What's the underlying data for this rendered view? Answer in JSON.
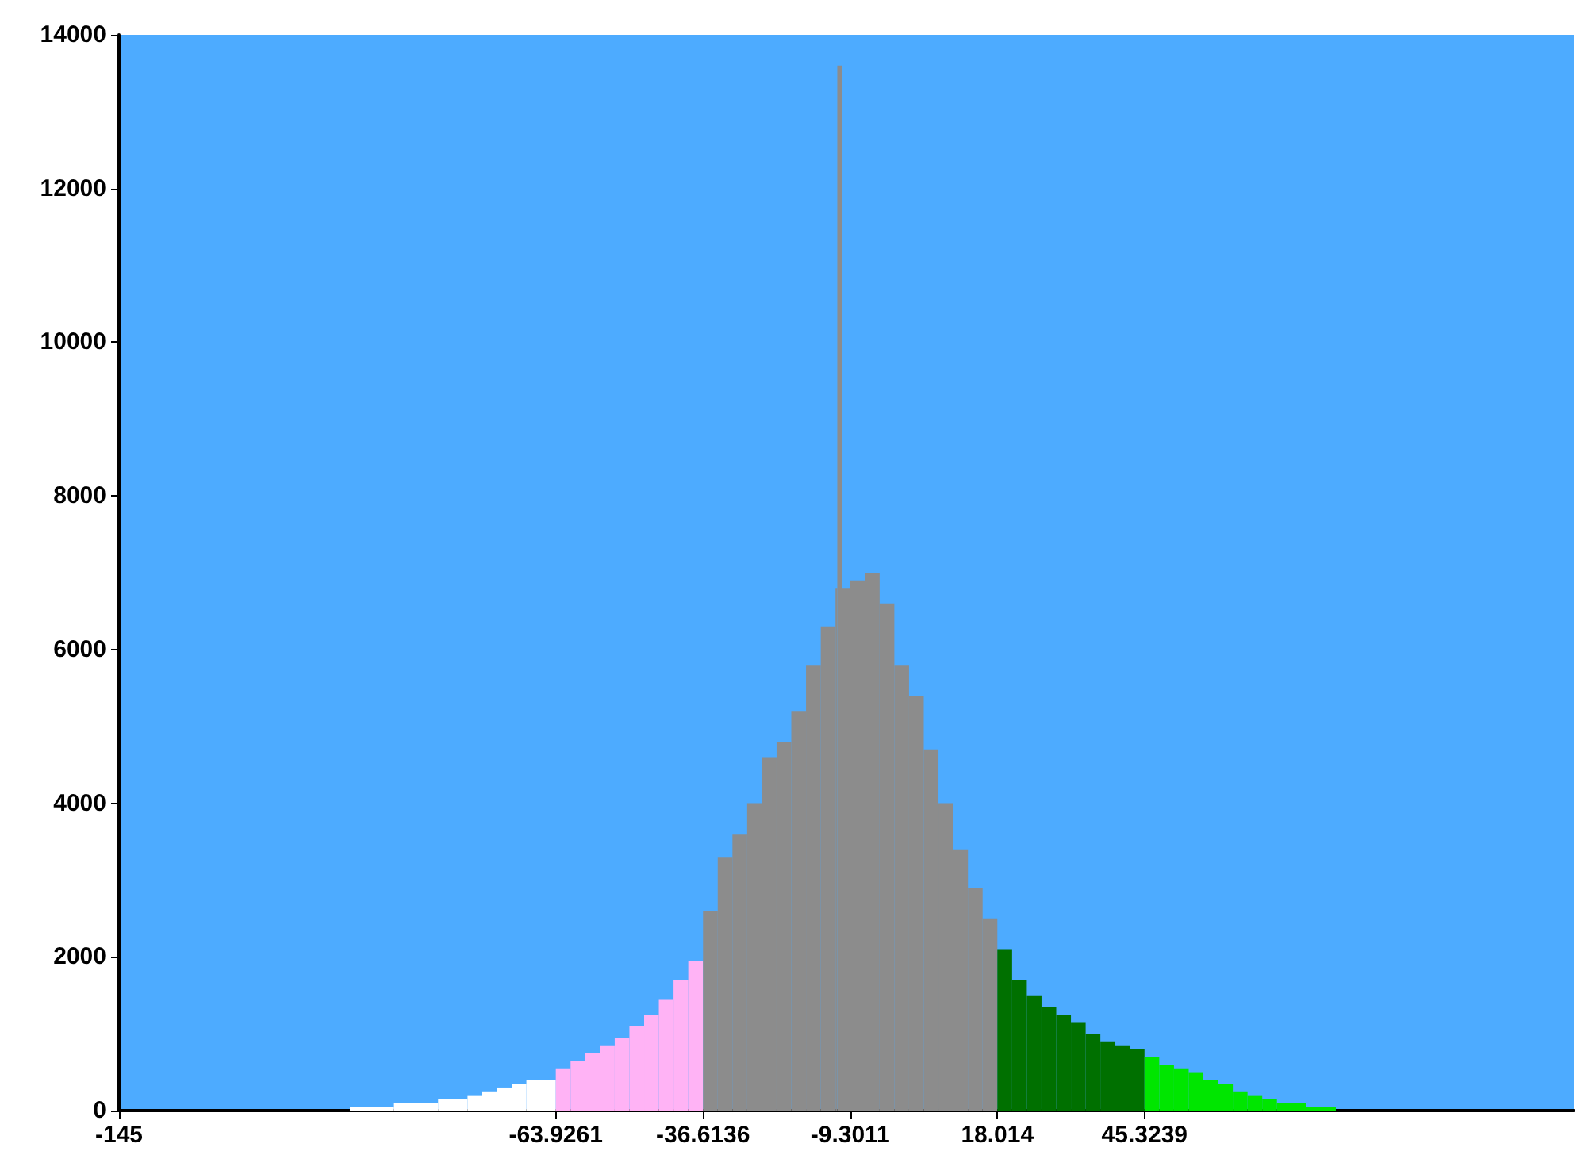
{
  "chart_data": {
    "type": "histogram",
    "bins": [
      -102.16,
      -93.97,
      -85.78,
      -80.31,
      -77.58,
      -74.85,
      -72.12,
      -69.39,
      -63.93,
      -61.19,
      -58.46,
      -55.73,
      -53,
      -50.27,
      -47.54,
      -44.81,
      -42.08,
      -39.35,
      -36.61,
      -33.88,
      -31.15,
      -28.42,
      -25.69,
      -22.96,
      -20.23,
      -17.5,
      -14.76,
      -12.03,
      -11.7,
      -10.8,
      -9.3,
      -6.57,
      -3.84,
      -1.11,
      1.62,
      4.35,
      7.08,
      9.82,
      12.55,
      15.28,
      18.01,
      20.75,
      23.48,
      26.21,
      28.94,
      31.67,
      34.4,
      37.13,
      39.86,
      42.59,
      45.32,
      48.06,
      50.79,
      53.52,
      56.25,
      58.98,
      61.71,
      64.44,
      67.17,
      69.9,
      75.37,
      80.83
    ],
    "values": [
      50,
      100,
      150,
      200,
      250,
      300,
      350,
      400,
      550,
      650,
      750,
      850,
      950,
      1100,
      1250,
      1450,
      1700,
      1950,
      2600,
      3300,
      3600,
      4000,
      4600,
      4800,
      5200,
      5800,
      6300,
      6800,
      13600,
      6800,
      6900,
      7000,
      6600,
      5800,
      5400,
      4700,
      4000,
      3400,
      2900,
      2500,
      2100,
      1700,
      1500,
      1350,
      1250,
      1150,
      1000,
      900,
      850,
      800,
      700,
      600,
      550,
      500,
      400,
      350,
      250,
      200,
      150,
      100,
      50
    ],
    "colors": [
      "#ffffff",
      "#ffffff",
      "#ffffff",
      "#ffffff",
      "#ffffff",
      "#ffffff",
      "#ffffff",
      "#ffffff",
      "#ffb3f5",
      "#ffb3f5",
      "#ffb3f5",
      "#ffb3f5",
      "#ffb3f5",
      "#ffb3f5",
      "#ffb3f5",
      "#ffb3f5",
      "#ffb3f5",
      "#ffb3f5",
      "#8c8c8c",
      "#8c8c8c",
      "#8c8c8c",
      "#8c8c8c",
      "#8c8c8c",
      "#8c8c8c",
      "#8c8c8c",
      "#8c8c8c",
      "#8c8c8c",
      "#8c8c8c",
      "#8c8c8c",
      "#8c8c8c",
      "#8c8c8c",
      "#8c8c8c",
      "#8c8c8c",
      "#8c8c8c",
      "#8c8c8c",
      "#8c8c8c",
      "#8c8c8c",
      "#8c8c8c",
      "#8c8c8c",
      "#8c8c8c",
      "#007000",
      "#007000",
      "#007000",
      "#007000",
      "#007000",
      "#007000",
      "#007000",
      "#007000",
      "#007000",
      "#007000",
      "#00e600",
      "#00e600",
      "#00e600",
      "#00e600",
      "#00e600",
      "#00e600",
      "#00e600",
      "#00e600",
      "#00e600",
      "#00e600",
      "#00e600"
    ],
    "xlim": [
      -145,
      125
    ],
    "xticks": [
      -145,
      -63.9261,
      -36.6136,
      -9.3011,
      18.014,
      45.3239
    ],
    "ylim": [
      0,
      14000
    ],
    "yticks": [
      0,
      2000,
      4000,
      6000,
      8000,
      10000,
      12000,
      14000
    ],
    "grid": false
  }
}
